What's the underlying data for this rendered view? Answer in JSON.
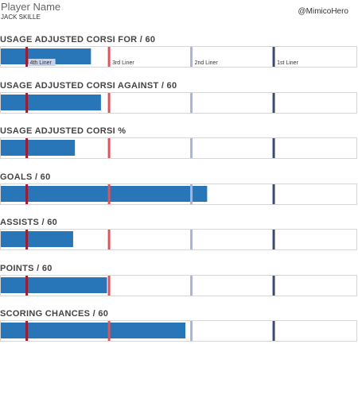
{
  "header": {
    "player_label": "Player Name",
    "player_name": "JACK SKILLE",
    "handle": "@MimicoHero"
  },
  "colors": {
    "bar": "#2876b8",
    "frame": "#d6d6d6",
    "liner_4th": "#9e1b32",
    "liner_3rd": "#d9575c",
    "liner_2nd": "#a9b4d8",
    "liner_1st": "#3b4a72",
    "label_bg": "#c7d3e8"
  },
  "tier_labels": [
    "4th Liner",
    "3rd Liner",
    "2nd Liner",
    "1st Liner"
  ],
  "chart_data": [
    {
      "type": "bar",
      "title": "USAGE ADJUSTED CORSI FOR / 60",
      "value": 0.253,
      "markers": [
        0.075,
        0.306,
        0.537,
        0.768
      ],
      "show_labels": true
    },
    {
      "type": "bar",
      "title": "USAGE ADJUSTED CORSI AGAINST / 60",
      "value": 0.281,
      "markers": [
        0.075,
        0.306,
        0.537,
        0.768
      ],
      "show_labels": false
    },
    {
      "type": "bar",
      "title": "USAGE ADJUSTED CORSI %",
      "value": 0.208,
      "markers": [
        0.075,
        0.306,
        0.537,
        0.768
      ],
      "show_labels": false
    },
    {
      "type": "bar",
      "title": "GOALS / 60",
      "value": 0.579,
      "markers": [
        0.075,
        0.306,
        0.537,
        0.768
      ],
      "show_labels": false
    },
    {
      "type": "bar",
      "title": "ASSISTS / 60",
      "value": 0.203,
      "markers": [
        0.075,
        0.306,
        0.537,
        0.768
      ],
      "show_labels": false
    },
    {
      "type": "bar",
      "title": "POINTS / 60",
      "value": 0.298,
      "markers": [
        0.075,
        0.306,
        0.537,
        0.768
      ],
      "show_labels": false
    },
    {
      "type": "bar",
      "title": "SCORING CHANCES / 60",
      "value": 0.518,
      "markers": [
        0.075,
        0.306,
        0.537,
        0.768
      ],
      "show_labels": false
    }
  ]
}
